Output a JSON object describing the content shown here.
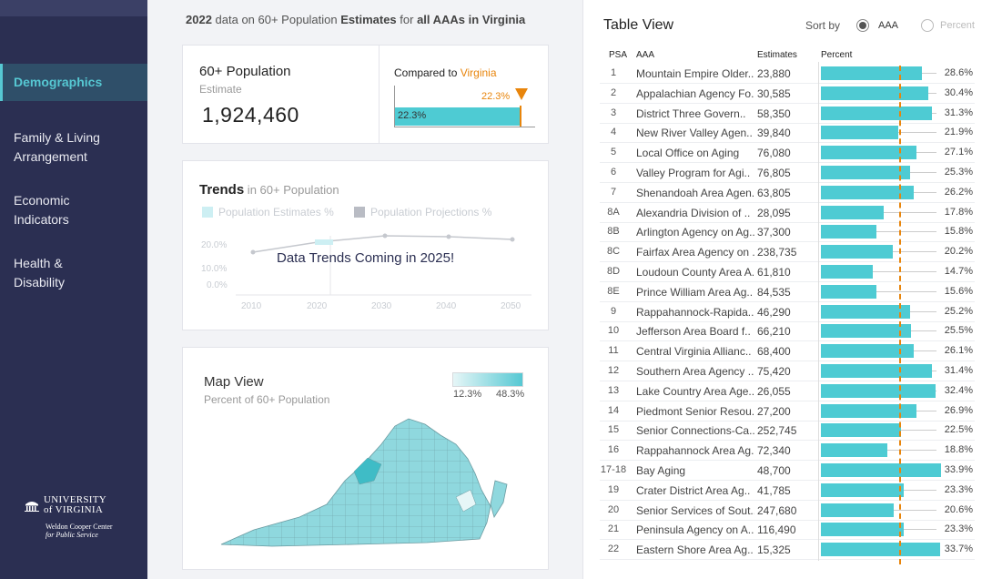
{
  "header": {
    "year": "2022",
    "mid1": " data on 60+ Population ",
    "bold1": "Estimates",
    "mid2": " for ",
    "bold2": "all AAAs in Virginia"
  },
  "sidebar": {
    "items": [
      {
        "label": "Demographics",
        "active": true
      },
      {
        "label": "Family & Living\nArrangement",
        "active": false
      },
      {
        "label": "Economic\nIndicators",
        "active": false
      },
      {
        "label": "Health &\nDisability",
        "active": false
      }
    ],
    "logo": {
      "line1": "UNIVERSITY",
      "line2": "of VIRGINIA",
      "line3": "Weldon Cooper Center",
      "line4": "for Public Service"
    }
  },
  "kpi": {
    "title": "60+ Population",
    "subtitle": "Estimate",
    "value": "1,924,460",
    "compare_prefix": "Compared to ",
    "compare_place": "Virginia",
    "marker_label": "22.3%",
    "bar_label": "22.3%"
  },
  "trends": {
    "title": "Trends",
    "subtitle": " in 60+ Population",
    "legend": [
      "Population Estimates %",
      "Population Projections %"
    ],
    "y_ticks": [
      "20.0%",
      "10.0%",
      "0.0%"
    ],
    "x_ticks": [
      "2010",
      "2020",
      "2030",
      "2040",
      "2050"
    ],
    "coming": "Data Trends Coming in 2025!",
    "colors": {
      "estimates": "#cdeff3",
      "projections": "#b9bcc4"
    }
  },
  "map": {
    "title": "Map View",
    "subtitle": "Percent of 60+ Population",
    "min_label": "12.3%",
    "max_label": "48.3%",
    "colors": {
      "low": "#e6f6f7",
      "high": "#56c8d3"
    }
  },
  "table": {
    "title": "Table View",
    "sort_label": "Sort by",
    "sort_options": [
      {
        "label": "AAA",
        "selected": true
      },
      {
        "label": "Percent",
        "selected": false
      }
    ],
    "headers": {
      "psa": "PSA",
      "aaa": "AAA",
      "estimates": "Estimates",
      "percent": "Percent"
    },
    "reference_percent": 22.3,
    "bar_color": "#4ecbd3",
    "rows": [
      {
        "psa": "1",
        "aaa": "Mountain Empire Older..",
        "est": "23,880",
        "pct": "28.6%",
        "v": 28.6
      },
      {
        "psa": "2",
        "aaa": "Appalachian Agency Fo..",
        "est": "30,585",
        "pct": "30.4%",
        "v": 30.4
      },
      {
        "psa": "3",
        "aaa": "District Three Govern..",
        "est": "58,350",
        "pct": "31.3%",
        "v": 31.3
      },
      {
        "psa": "4",
        "aaa": "New River Valley Agen..",
        "est": "39,840",
        "pct": "21.9%",
        "v": 21.9
      },
      {
        "psa": "5",
        "aaa": "Local Office on Aging",
        "est": "76,080",
        "pct": "27.1%",
        "v": 27.1
      },
      {
        "psa": "6",
        "aaa": "Valley Program for Agi..",
        "est": "76,805",
        "pct": "25.3%",
        "v": 25.3
      },
      {
        "psa": "7",
        "aaa": "Shenandoah Area Agen..",
        "est": "63,805",
        "pct": "26.2%",
        "v": 26.2
      },
      {
        "psa": "8A",
        "aaa": "Alexandria Division of ..",
        "est": "28,095",
        "pct": "17.8%",
        "v": 17.8
      },
      {
        "psa": "8B",
        "aaa": "Arlington Agency on Ag..",
        "est": "37,300",
        "pct": "15.8%",
        "v": 15.8
      },
      {
        "psa": "8C",
        "aaa": "Fairfax Area Agency on ..",
        "est": "238,735",
        "pct": "20.2%",
        "v": 20.2
      },
      {
        "psa": "8D",
        "aaa": "Loudoun County Area A..",
        "est": "61,810",
        "pct": "14.7%",
        "v": 14.7
      },
      {
        "psa": "8E",
        "aaa": "Prince William Area Ag..",
        "est": "84,535",
        "pct": "15.6%",
        "v": 15.6
      },
      {
        "psa": "9",
        "aaa": "Rappahannock-Rapida..",
        "est": "46,290",
        "pct": "25.2%",
        "v": 25.2
      },
      {
        "psa": "10",
        "aaa": "Jefferson Area Board f..",
        "est": "66,210",
        "pct": "25.5%",
        "v": 25.5
      },
      {
        "psa": "11",
        "aaa": "Central Virginia Allianc..",
        "est": "68,400",
        "pct": "26.1%",
        "v": 26.1
      },
      {
        "psa": "12",
        "aaa": "Southern Area Agency ..",
        "est": "75,420",
        "pct": "31.4%",
        "v": 31.4
      },
      {
        "psa": "13",
        "aaa": "Lake Country Area Age..",
        "est": "26,055",
        "pct": "32.4%",
        "v": 32.4
      },
      {
        "psa": "14",
        "aaa": "Piedmont Senior Resou..",
        "est": "27,200",
        "pct": "26.9%",
        "v": 26.9
      },
      {
        "psa": "15",
        "aaa": "Senior Connections-Ca..",
        "est": "252,745",
        "pct": "22.5%",
        "v": 22.5
      },
      {
        "psa": "16",
        "aaa": "Rappahannock Area Ag..",
        "est": "72,340",
        "pct": "18.8%",
        "v": 18.8
      },
      {
        "psa": "17-18",
        "aaa": "Bay Aging",
        "est": "48,700",
        "pct": "33.9%",
        "v": 33.9
      },
      {
        "psa": "19",
        "aaa": "Crater District Area Ag..",
        "est": "41,785",
        "pct": "23.3%",
        "v": 23.3
      },
      {
        "psa": "20",
        "aaa": "Senior Services of Sout..",
        "est": "247,680",
        "pct": "20.6%",
        "v": 20.6
      },
      {
        "psa": "21",
        "aaa": "Peninsula Agency on A..",
        "est": "116,490",
        "pct": "23.3%",
        "v": 23.3
      },
      {
        "psa": "22",
        "aaa": "Eastern Shore Area Ag..",
        "est": "15,325",
        "pct": "33.7%",
        "v": 33.7
      }
    ]
  }
}
